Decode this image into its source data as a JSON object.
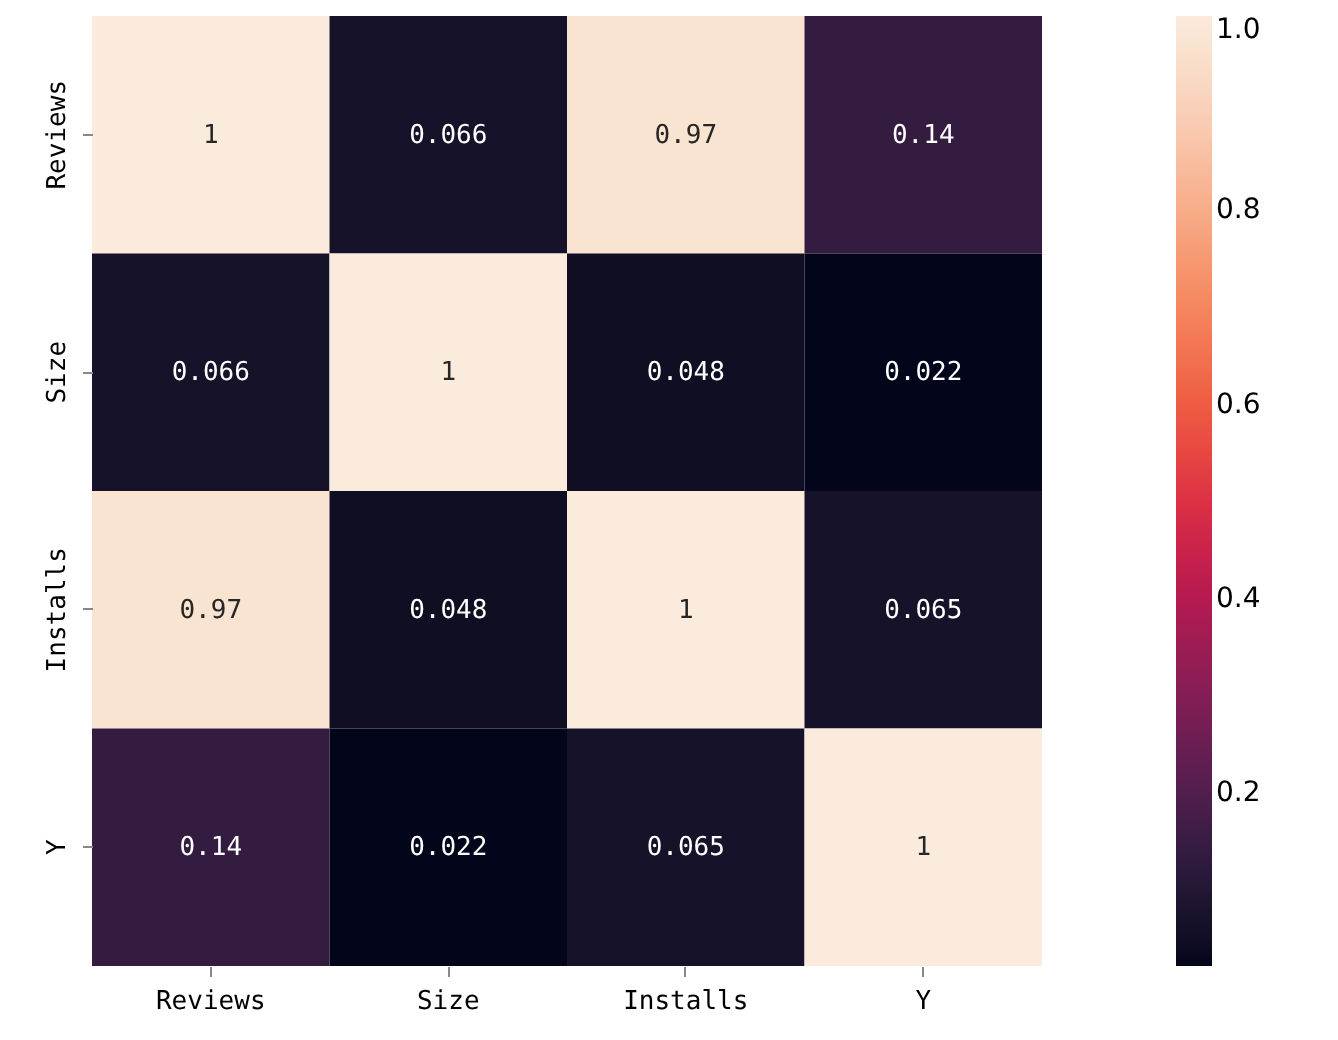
{
  "chart_data": {
    "type": "heatmap",
    "categories": [
      "Reviews",
      "Size",
      "Installs",
      "Y"
    ],
    "y_categories": [
      "Reviews",
      "Size",
      "Installs",
      "Y"
    ],
    "cells": [
      [
        1,
        0.066,
        0.97,
        0.14
      ],
      [
        0.066,
        1,
        0.048,
        0.022
      ],
      [
        0.97,
        0.048,
        1,
        0.065
      ],
      [
        0.14,
        0.022,
        0.065,
        1
      ]
    ],
    "data_labels": true,
    "clim": [
      0.022,
      1
    ],
    "cticks": [
      0.2,
      0.4,
      0.6,
      0.8,
      {
        "value": 1,
        "label": "1.0"
      }
    ]
  }
}
